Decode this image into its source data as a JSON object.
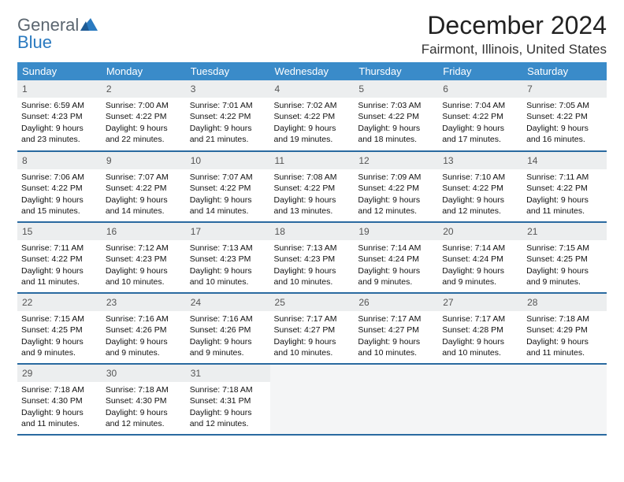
{
  "logo": {
    "text_general": "General",
    "text_blue": "Blue"
  },
  "title": "December 2024",
  "subtitle": "Fairmont, Illinois, United States",
  "theme": {
    "header_bg": "#3a8bc9",
    "header_text": "#ffffff",
    "row_divider": "#2a6aa0",
    "daynum_bg": "#eceeef",
    "daynum_text": "#555555",
    "empty_bg": "#f4f5f6",
    "body_text": "#111111",
    "logo_general_color": "#5b6670",
    "logo_blue_color": "#2a7ac0"
  },
  "weekdays": [
    "Sunday",
    "Monday",
    "Tuesday",
    "Wednesday",
    "Thursday",
    "Friday",
    "Saturday"
  ],
  "days": [
    {
      "n": 1,
      "sunrise": "6:59 AM",
      "sunset": "4:23 PM",
      "daylight": "9 hours and 23 minutes."
    },
    {
      "n": 2,
      "sunrise": "7:00 AM",
      "sunset": "4:22 PM",
      "daylight": "9 hours and 22 minutes."
    },
    {
      "n": 3,
      "sunrise": "7:01 AM",
      "sunset": "4:22 PM",
      "daylight": "9 hours and 21 minutes."
    },
    {
      "n": 4,
      "sunrise": "7:02 AM",
      "sunset": "4:22 PM",
      "daylight": "9 hours and 19 minutes."
    },
    {
      "n": 5,
      "sunrise": "7:03 AM",
      "sunset": "4:22 PM",
      "daylight": "9 hours and 18 minutes."
    },
    {
      "n": 6,
      "sunrise": "7:04 AM",
      "sunset": "4:22 PM",
      "daylight": "9 hours and 17 minutes."
    },
    {
      "n": 7,
      "sunrise": "7:05 AM",
      "sunset": "4:22 PM",
      "daylight": "9 hours and 16 minutes."
    },
    {
      "n": 8,
      "sunrise": "7:06 AM",
      "sunset": "4:22 PM",
      "daylight": "9 hours and 15 minutes."
    },
    {
      "n": 9,
      "sunrise": "7:07 AM",
      "sunset": "4:22 PM",
      "daylight": "9 hours and 14 minutes."
    },
    {
      "n": 10,
      "sunrise": "7:07 AM",
      "sunset": "4:22 PM",
      "daylight": "9 hours and 14 minutes."
    },
    {
      "n": 11,
      "sunrise": "7:08 AM",
      "sunset": "4:22 PM",
      "daylight": "9 hours and 13 minutes."
    },
    {
      "n": 12,
      "sunrise": "7:09 AM",
      "sunset": "4:22 PM",
      "daylight": "9 hours and 12 minutes."
    },
    {
      "n": 13,
      "sunrise": "7:10 AM",
      "sunset": "4:22 PM",
      "daylight": "9 hours and 12 minutes."
    },
    {
      "n": 14,
      "sunrise": "7:11 AM",
      "sunset": "4:22 PM",
      "daylight": "9 hours and 11 minutes."
    },
    {
      "n": 15,
      "sunrise": "7:11 AM",
      "sunset": "4:22 PM",
      "daylight": "9 hours and 11 minutes."
    },
    {
      "n": 16,
      "sunrise": "7:12 AM",
      "sunset": "4:23 PM",
      "daylight": "9 hours and 10 minutes."
    },
    {
      "n": 17,
      "sunrise": "7:13 AM",
      "sunset": "4:23 PM",
      "daylight": "9 hours and 10 minutes."
    },
    {
      "n": 18,
      "sunrise": "7:13 AM",
      "sunset": "4:23 PM",
      "daylight": "9 hours and 10 minutes."
    },
    {
      "n": 19,
      "sunrise": "7:14 AM",
      "sunset": "4:24 PM",
      "daylight": "9 hours and 9 minutes."
    },
    {
      "n": 20,
      "sunrise": "7:14 AM",
      "sunset": "4:24 PM",
      "daylight": "9 hours and 9 minutes."
    },
    {
      "n": 21,
      "sunrise": "7:15 AM",
      "sunset": "4:25 PM",
      "daylight": "9 hours and 9 minutes."
    },
    {
      "n": 22,
      "sunrise": "7:15 AM",
      "sunset": "4:25 PM",
      "daylight": "9 hours and 9 minutes."
    },
    {
      "n": 23,
      "sunrise": "7:16 AM",
      "sunset": "4:26 PM",
      "daylight": "9 hours and 9 minutes."
    },
    {
      "n": 24,
      "sunrise": "7:16 AM",
      "sunset": "4:26 PM",
      "daylight": "9 hours and 9 minutes."
    },
    {
      "n": 25,
      "sunrise": "7:17 AM",
      "sunset": "4:27 PM",
      "daylight": "9 hours and 10 minutes."
    },
    {
      "n": 26,
      "sunrise": "7:17 AM",
      "sunset": "4:27 PM",
      "daylight": "9 hours and 10 minutes."
    },
    {
      "n": 27,
      "sunrise": "7:17 AM",
      "sunset": "4:28 PM",
      "daylight": "9 hours and 10 minutes."
    },
    {
      "n": 28,
      "sunrise": "7:18 AM",
      "sunset": "4:29 PM",
      "daylight": "9 hours and 11 minutes."
    },
    {
      "n": 29,
      "sunrise": "7:18 AM",
      "sunset": "4:30 PM",
      "daylight": "9 hours and 11 minutes."
    },
    {
      "n": 30,
      "sunrise": "7:18 AM",
      "sunset": "4:30 PM",
      "daylight": "9 hours and 12 minutes."
    },
    {
      "n": 31,
      "sunrise": "7:18 AM",
      "sunset": "4:31 PM",
      "daylight": "9 hours and 12 minutes."
    }
  ],
  "labels": {
    "sunrise_prefix": "Sunrise: ",
    "sunset_prefix": "Sunset: ",
    "daylight_prefix": "Daylight: "
  },
  "layout": {
    "first_weekday_index": 0,
    "weeks": 5,
    "cols": 7
  }
}
